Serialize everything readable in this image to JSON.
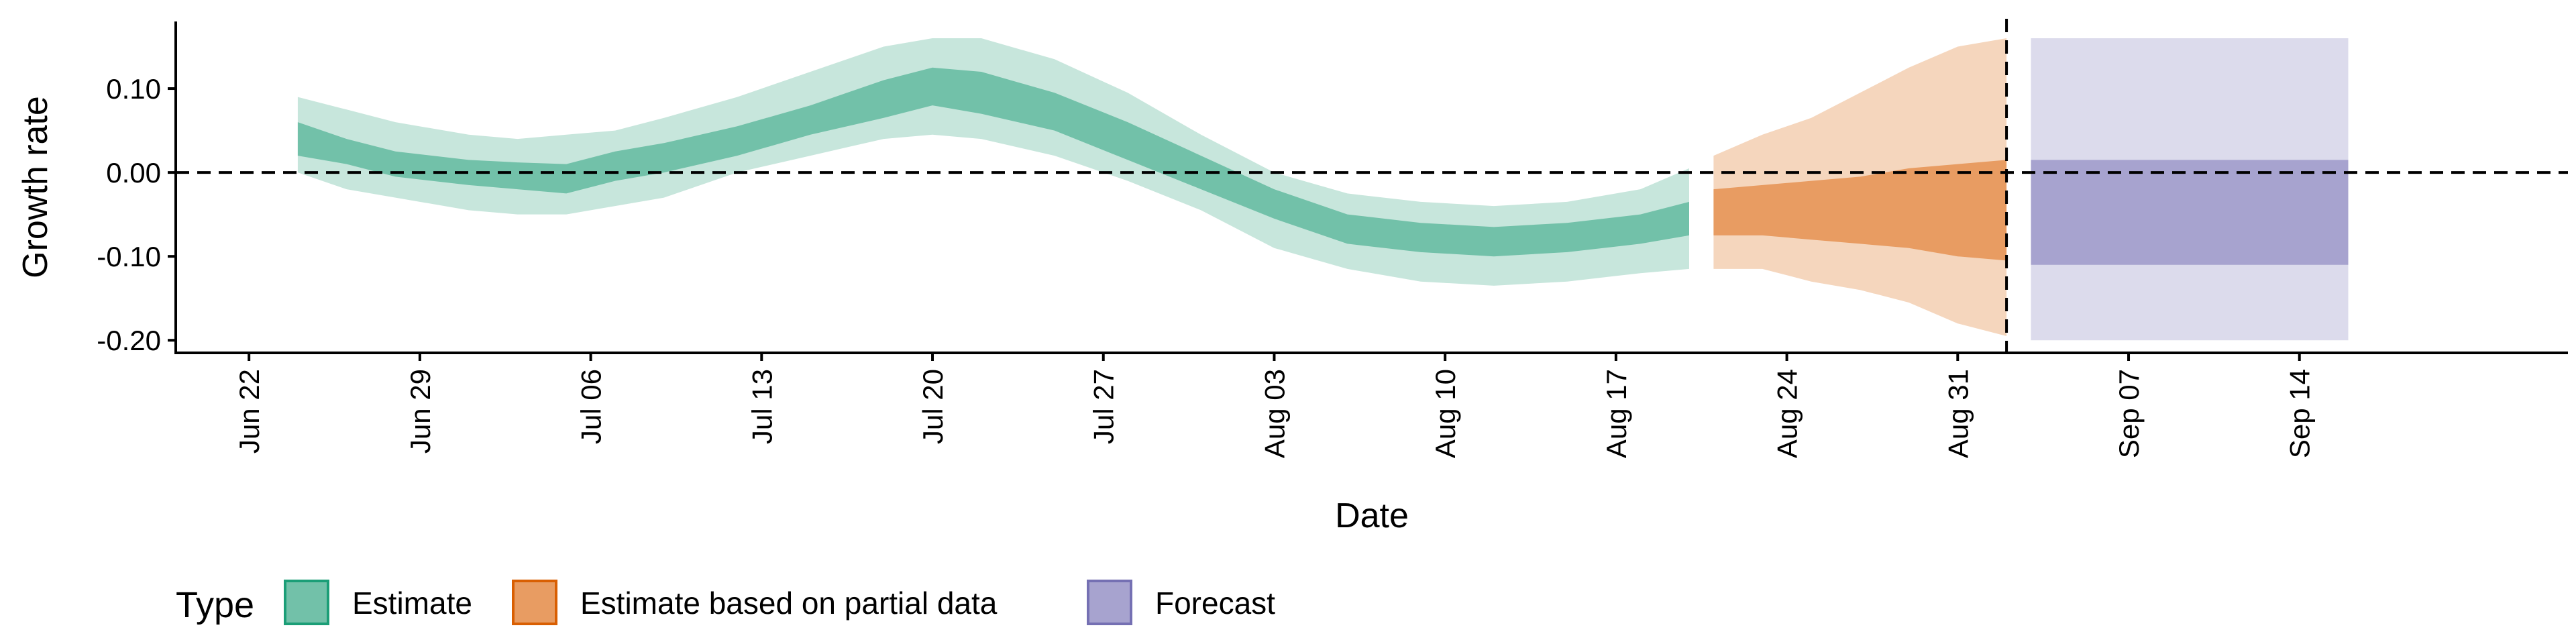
{
  "chart_data": {
    "type": "area",
    "xlabel": "Date",
    "ylabel": "Growth rate",
    "ylim": [
      -0.215,
      0.18
    ],
    "yticks": [
      {
        "value": 0.1,
        "label": "0.10"
      },
      {
        "value": 0.0,
        "label": "0.00"
      },
      {
        "value": -0.1,
        "label": "-0.10"
      },
      {
        "value": -0.2,
        "label": "-0.20"
      }
    ],
    "x_start": "2020-06-19",
    "x_end": "2020-09-25",
    "xticks": [
      {
        "date": "2020-06-22",
        "label": "Jun 22"
      },
      {
        "date": "2020-06-29",
        "label": "Jun 29"
      },
      {
        "date": "2020-07-06",
        "label": "Jul 06"
      },
      {
        "date": "2020-07-13",
        "label": "Jul 13"
      },
      {
        "date": "2020-07-20",
        "label": "Jul 20"
      },
      {
        "date": "2020-07-27",
        "label": "Jul 27"
      },
      {
        "date": "2020-08-03",
        "label": "Aug 03"
      },
      {
        "date": "2020-08-10",
        "label": "Aug 10"
      },
      {
        "date": "2020-08-17",
        "label": "Aug 17"
      },
      {
        "date": "2020-08-24",
        "label": "Aug 24"
      },
      {
        "date": "2020-08-31",
        "label": "Aug 31"
      },
      {
        "date": "2020-09-07",
        "label": "Sep 07"
      },
      {
        "date": "2020-09-14",
        "label": "Sep 14"
      }
    ],
    "hline": {
      "y": 0.0,
      "style": "dashed"
    },
    "vline": {
      "date": "2020-09-02",
      "style": "dashed"
    },
    "grid": false,
    "legend": {
      "title": "Type",
      "position": "bottom-left",
      "entries": [
        {
          "label": "Estimate",
          "fill": "#72c1a9",
          "border": "#1b9e77"
        },
        {
          "label": "Estimate based on partial data",
          "fill": "#e89c62",
          "border": "#d95f02"
        },
        {
          "label": "Forecast",
          "fill": "#a7a3cf",
          "border": "#7570b3"
        }
      ]
    },
    "series": [
      {
        "name": "Estimate",
        "outer_color": "#c7e6dc",
        "inner_color": "#72c1a9",
        "points": [
          {
            "date": "2020-06-24",
            "lower90": 0.0,
            "lower50": 0.02,
            "upper50": 0.06,
            "upper90": 0.09
          },
          {
            "date": "2020-06-26",
            "lower90": -0.02,
            "lower50": 0.01,
            "upper50": 0.04,
            "upper90": 0.075
          },
          {
            "date": "2020-06-28",
            "lower90": -0.03,
            "lower50": -0.005,
            "upper50": 0.025,
            "upper90": 0.06
          },
          {
            "date": "2020-07-01",
            "lower90": -0.045,
            "lower50": -0.015,
            "upper50": 0.015,
            "upper90": 0.045
          },
          {
            "date": "2020-07-03",
            "lower90": -0.05,
            "lower50": -0.02,
            "upper50": 0.012,
            "upper90": 0.04
          },
          {
            "date": "2020-07-05",
            "lower90": -0.05,
            "lower50": -0.025,
            "upper50": 0.01,
            "upper90": 0.045
          },
          {
            "date": "2020-07-07",
            "lower90": -0.04,
            "lower50": -0.01,
            "upper50": 0.025,
            "upper90": 0.05
          },
          {
            "date": "2020-07-09",
            "lower90": -0.03,
            "lower50": 0.0,
            "upper50": 0.035,
            "upper90": 0.065
          },
          {
            "date": "2020-07-12",
            "lower90": 0.0,
            "lower50": 0.02,
            "upper50": 0.055,
            "upper90": 0.09
          },
          {
            "date": "2020-07-15",
            "lower90": 0.02,
            "lower50": 0.045,
            "upper50": 0.08,
            "upper90": 0.12
          },
          {
            "date": "2020-07-18",
            "lower90": 0.04,
            "lower50": 0.065,
            "upper50": 0.11,
            "upper90": 0.15
          },
          {
            "date": "2020-07-20",
            "lower90": 0.045,
            "lower50": 0.08,
            "upper50": 0.125,
            "upper90": 0.16
          },
          {
            "date": "2020-07-22",
            "lower90": 0.04,
            "lower50": 0.07,
            "upper50": 0.12,
            "upper90": 0.16
          },
          {
            "date": "2020-07-25",
            "lower90": 0.02,
            "lower50": 0.05,
            "upper50": 0.095,
            "upper90": 0.135
          },
          {
            "date": "2020-07-28",
            "lower90": -0.01,
            "lower50": 0.015,
            "upper50": 0.06,
            "upper90": 0.095
          },
          {
            "date": "2020-07-31",
            "lower90": -0.045,
            "lower50": -0.02,
            "upper50": 0.02,
            "upper90": 0.045
          },
          {
            "date": "2020-08-03",
            "lower90": -0.09,
            "lower50": -0.055,
            "upper50": -0.02,
            "upper90": 0.0
          },
          {
            "date": "2020-08-06",
            "lower90": -0.115,
            "lower50": -0.085,
            "upper50": -0.05,
            "upper90": -0.025
          },
          {
            "date": "2020-08-09",
            "lower90": -0.13,
            "lower50": -0.095,
            "upper50": -0.06,
            "upper90": -0.035
          },
          {
            "date": "2020-08-12",
            "lower90": -0.135,
            "lower50": -0.1,
            "upper50": -0.065,
            "upper90": -0.04
          },
          {
            "date": "2020-08-15",
            "lower90": -0.13,
            "lower50": -0.095,
            "upper50": -0.06,
            "upper90": -0.035
          },
          {
            "date": "2020-08-18",
            "lower90": -0.12,
            "lower50": -0.085,
            "upper50": -0.05,
            "upper90": -0.02
          },
          {
            "date": "2020-08-20",
            "lower90": -0.115,
            "lower50": -0.075,
            "upper50": -0.035,
            "upper90": 0.005
          }
        ]
      },
      {
        "name": "Estimate based on partial data",
        "outer_color": "#f5d6bd",
        "inner_color": "#e89c62",
        "points": [
          {
            "date": "2020-08-21",
            "lower90": -0.115,
            "lower50": -0.075,
            "upper50": -0.02,
            "upper90": 0.02
          },
          {
            "date": "2020-08-23",
            "lower90": -0.115,
            "lower50": -0.075,
            "upper50": -0.015,
            "upper90": 0.045
          },
          {
            "date": "2020-08-25",
            "lower90": -0.13,
            "lower50": -0.08,
            "upper50": -0.01,
            "upper90": 0.065
          },
          {
            "date": "2020-08-27",
            "lower90": -0.14,
            "lower50": -0.085,
            "upper50": -0.005,
            "upper90": 0.095
          },
          {
            "date": "2020-08-29",
            "lower90": -0.155,
            "lower50": -0.09,
            "upper50": 0.005,
            "upper90": 0.125
          },
          {
            "date": "2020-08-31",
            "lower90": -0.18,
            "lower50": -0.1,
            "upper50": 0.01,
            "upper90": 0.15
          },
          {
            "date": "2020-09-02",
            "lower90": -0.195,
            "lower50": -0.105,
            "upper50": 0.015,
            "upper90": 0.16
          }
        ]
      },
      {
        "name": "Forecast",
        "outer_color": "#dcdbec",
        "inner_color": "#a7a3cf",
        "points": [
          {
            "date": "2020-09-03",
            "lower90": -0.2,
            "lower50": -0.11,
            "upper50": 0.015,
            "upper90": 0.16
          },
          {
            "date": "2020-09-16",
            "lower90": -0.2,
            "lower50": -0.11,
            "upper50": 0.015,
            "upper90": 0.16
          }
        ]
      }
    ]
  }
}
